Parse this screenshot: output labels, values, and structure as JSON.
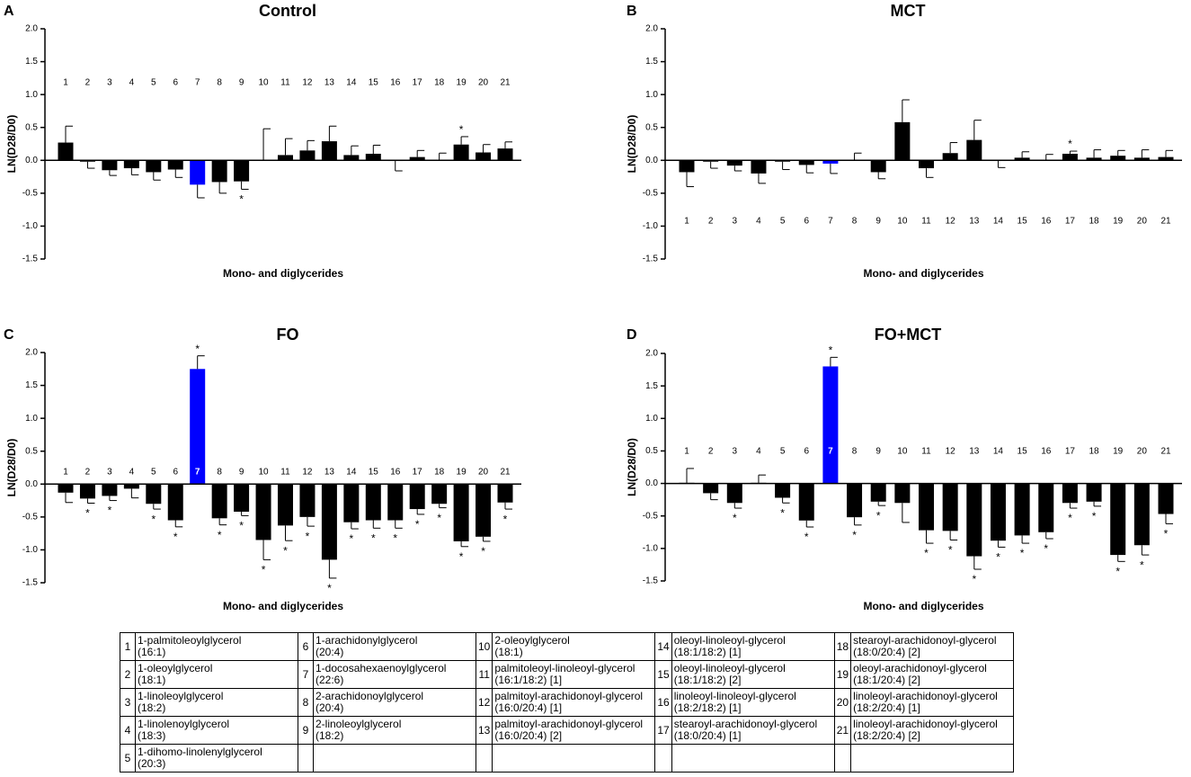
{
  "chart_data": [
    {
      "type": "bar",
      "panel_label": "A",
      "title": "Control",
      "xlabel": "Mono- and diglycerides",
      "ylabel": "LN(D28/D0)",
      "categories": [
        "1",
        "2",
        "3",
        "4",
        "5",
        "6",
        "7",
        "8",
        "9",
        "10",
        "11",
        "12",
        "13",
        "14",
        "15",
        "16",
        "17",
        "18",
        "19",
        "20",
        "21"
      ],
      "values": [
        0.27,
        -0.02,
        -0.15,
        -0.12,
        -0.18,
        -0.14,
        -0.37,
        -0.33,
        -0.32,
        0.01,
        0.08,
        0.15,
        0.29,
        0.08,
        0.1,
        -0.01,
        0.05,
        0.01,
        0.24,
        0.12,
        0.18
      ],
      "errors": [
        0.25,
        0.1,
        0.08,
        0.1,
        0.12,
        0.12,
        0.2,
        0.17,
        0.12,
        0.47,
        0.25,
        0.15,
        0.23,
        0.14,
        0.13,
        0.15,
        0.1,
        0.1,
        0.12,
        0.12,
        0.1
      ],
      "significance": [
        null,
        null,
        null,
        null,
        null,
        null,
        null,
        null,
        "*",
        null,
        null,
        null,
        null,
        null,
        null,
        null,
        null,
        null,
        "*",
        null,
        null
      ],
      "bar_colors": [
        "#000000",
        "#000000",
        "#000000",
        "#000000",
        "#000000",
        "#000000",
        "#0000ff",
        "#000000",
        "#000000",
        "#000000",
        "#000000",
        "#000000",
        "#000000",
        "#000000",
        "#000000",
        "#000000",
        "#000000",
        "#000000",
        "#000000",
        "#000000",
        "#000000"
      ],
      "ylim": [
        -1.5,
        2
      ],
      "yticks": [
        -1.5,
        {
          "value": -1,
          "label": "-1.0"
        },
        -0.5,
        {
          "value": 0,
          "label": "0.0"
        },
        0.5,
        {
          "value": 1,
          "label": "1.0"
        },
        1.5,
        {
          "value": 2,
          "label": "2.0"
        }
      ]
    },
    {
      "type": "bar",
      "panel_label": "B",
      "title": "MCT",
      "xlabel": "Mono- and diglycerides",
      "ylabel": "LN(D28/D0)",
      "categories": [
        "1",
        "2",
        "3",
        "4",
        "5",
        "6",
        "7",
        "8",
        "9",
        "10",
        "11",
        "12",
        "13",
        "14",
        "15",
        "16",
        "17",
        "18",
        "19",
        "20",
        "21"
      ],
      "values": [
        -0.18,
        -0.02,
        -0.08,
        -0.2,
        -0.02,
        -0.07,
        -0.05,
        0.01,
        -0.18,
        0.58,
        -0.12,
        0.11,
        0.31,
        -0.01,
        0.04,
        0.01,
        0.1,
        0.04,
        0.07,
        0.04,
        0.05
      ],
      "errors": [
        0.22,
        0.1,
        0.08,
        0.15,
        0.12,
        0.12,
        0.15,
        0.1,
        0.1,
        0.34,
        0.14,
        0.16,
        0.3,
        0.1,
        0.09,
        0.08,
        0.04,
        0.12,
        0.08,
        0.12,
        0.1
      ],
      "significance": [
        null,
        null,
        null,
        null,
        null,
        null,
        null,
        null,
        null,
        null,
        null,
        null,
        null,
        null,
        null,
        null,
        "*",
        null,
        null,
        null,
        null
      ],
      "bar_colors": [
        "#000000",
        "#000000",
        "#000000",
        "#000000",
        "#000000",
        "#000000",
        "#0000ff",
        "#000000",
        "#000000",
        "#000000",
        "#000000",
        "#000000",
        "#000000",
        "#000000",
        "#000000",
        "#000000",
        "#000000",
        "#000000",
        "#000000",
        "#000000",
        "#000000"
      ],
      "ylim": [
        -1.5,
        2
      ],
      "yticks": [
        -1.5,
        {
          "value": -1,
          "label": "-1.0"
        },
        -0.5,
        {
          "value": 0,
          "label": "0.0"
        },
        0.5,
        {
          "value": 1,
          "label": "1.0"
        },
        1.5,
        {
          "value": 2,
          "label": "2.0"
        }
      ]
    },
    {
      "type": "bar",
      "panel_label": "C",
      "title": "FO",
      "xlabel": "Mono- and diglycerides",
      "ylabel": "LN(D28/D0)",
      "categories": [
        "1",
        "2",
        "3",
        "4",
        "5",
        "6",
        "7",
        "8",
        "9",
        "10",
        "11",
        "12",
        "13",
        "14",
        "15",
        "16",
        "17",
        "18",
        "19",
        "20",
        "21"
      ],
      "values": [
        -0.13,
        -0.22,
        -0.18,
        -0.07,
        -0.3,
        -0.55,
        1.75,
        -0.52,
        -0.42,
        -0.85,
        -0.63,
        -0.5,
        -1.15,
        -0.58,
        -0.55,
        -0.55,
        -0.38,
        -0.3,
        -0.87,
        -0.8,
        -0.28
      ],
      "errors": [
        0.15,
        0.07,
        0.07,
        0.14,
        0.08,
        0.1,
        0.2,
        0.1,
        0.06,
        0.3,
        0.23,
        0.14,
        0.28,
        0.1,
        0.12,
        0.12,
        0.08,
        0.06,
        0.08,
        0.07,
        0.1
      ],
      "significance": [
        null,
        "*",
        "*",
        null,
        "*",
        "*",
        "*",
        "*",
        "*",
        "*",
        "*",
        "*",
        "*",
        "*",
        "*",
        "*",
        "*",
        "*",
        "*",
        "*",
        "*"
      ],
      "bar_colors": [
        "#000000",
        "#000000",
        "#000000",
        "#000000",
        "#000000",
        "#000000",
        "#0000ff",
        "#000000",
        "#000000",
        "#000000",
        "#000000",
        "#000000",
        "#000000",
        "#000000",
        "#000000",
        "#000000",
        "#000000",
        "#000000",
        "#000000",
        "#000000",
        "#000000"
      ],
      "ylim": [
        -1.5,
        2
      ],
      "yticks": [
        -1.5,
        {
          "value": -1,
          "label": "-1.0"
        },
        -0.5,
        {
          "value": 0,
          "label": "0.0"
        },
        0.5,
        {
          "value": 1,
          "label": "1.0"
        },
        1.5,
        {
          "value": 2,
          "label": "2.0"
        }
      ]
    },
    {
      "type": "bar",
      "panel_label": "D",
      "title": "FO+MCT",
      "xlabel": "Mono- and diglycerides",
      "ylabel": "LN(D28/D0)",
      "categories": [
        "1",
        "2",
        "3",
        "4",
        "5",
        "6",
        "7",
        "8",
        "9",
        "10",
        "11",
        "12",
        "13",
        "14",
        "15",
        "16",
        "17",
        "18",
        "19",
        "20",
        "21"
      ],
      "values": [
        0.01,
        -0.15,
        -0.3,
        0.01,
        -0.22,
        -0.57,
        1.8,
        -0.52,
        -0.28,
        -0.3,
        -0.72,
        -0.73,
        -1.12,
        -0.88,
        -0.8,
        -0.75,
        -0.3,
        -0.28,
        -1.1,
        -0.95,
        -0.47
      ],
      "errors": [
        0.22,
        0.1,
        0.08,
        0.12,
        0.08,
        0.1,
        0.14,
        0.12,
        0.06,
        0.3,
        0.2,
        0.14,
        0.2,
        0.1,
        0.12,
        0.1,
        0.08,
        0.07,
        0.1,
        0.15,
        0.15
      ],
      "significance": [
        null,
        null,
        "*",
        null,
        "*",
        "*",
        "*",
        "*",
        "*",
        null,
        "*",
        "*",
        "*",
        "*",
        "*",
        "*",
        "*",
        "*",
        "*",
        "*",
        "*"
      ],
      "bar_colors": [
        "#000000",
        "#000000",
        "#000000",
        "#000000",
        "#000000",
        "#000000",
        "#0000ff",
        "#000000",
        "#000000",
        "#000000",
        "#000000",
        "#000000",
        "#000000",
        "#000000",
        "#000000",
        "#000000",
        "#000000",
        "#000000",
        "#000000",
        "#000000",
        "#000000"
      ],
      "ylim": [
        -1.5,
        2
      ],
      "yticks": [
        -1.5,
        {
          "value": -1,
          "label": "-1.0"
        },
        -0.5,
        {
          "value": 0,
          "label": "0.0"
        },
        0.5,
        {
          "value": 1,
          "label": "1.0"
        },
        1.5,
        {
          "value": 2,
          "label": "2.0"
        }
      ]
    }
  ],
  "legend_table": {
    "entries": [
      {
        "number": "1",
        "name": "1-palmitoleoylglycerol",
        "formula": "(16:1)"
      },
      {
        "number": "2",
        "name": "1-oleoylglycerol",
        "formula": "(18:1)"
      },
      {
        "number": "3",
        "name": "1-linoleoylglycerol",
        "formula": "(18:2)"
      },
      {
        "number": "4",
        "name": "1-linolenoylglycerol",
        "formula": "(18:3)"
      },
      {
        "number": "5",
        "name": "1-dihomo-linolenylglycerol",
        "formula": "(20:3)"
      },
      {
        "number": "6",
        "name": "1-arachidonylglycerol",
        "formula": "(20:4)"
      },
      {
        "number": "7",
        "name": "1-docosahexaenoylglycerol",
        "formula": "(22:6)"
      },
      {
        "number": "8",
        "name": "2-arachidonoylglycerol",
        "formula": "(20:4)"
      },
      {
        "number": "9",
        "name": "2-linoleoylglycerol",
        "formula": "(18:2)"
      },
      {
        "number": "10",
        "name": "2-oleoylglycerol",
        "formula": "(18:1)"
      },
      {
        "number": "11",
        "name": "palmitoleoyl-linoleoyl-glycerol",
        "formula": "(16:1/18:2) [1]"
      },
      {
        "number": "12",
        "name": "palmitoyl-arachidonoyl-glycerol",
        "formula": "(16:0/20:4) [1]"
      },
      {
        "number": "13",
        "name": "palmitoyl-arachidonoyl-glycerol",
        "formula": "(16:0/20:4) [2]"
      },
      {
        "number": "14",
        "name": "oleoyl-linoleoyl-glycerol",
        "formula": "(18:1/18:2) [1]"
      },
      {
        "number": "15",
        "name": "oleoyl-linoleoyl-glycerol",
        "formula": "(18:1/18:2) [2]"
      },
      {
        "number": "16",
        "name": "linoleoyl-linoleoyl-glycerol",
        "formula": "(18:2/18:2) [1]"
      },
      {
        "number": "17",
        "name": "stearoyl-arachidonoyl-glycerol",
        "formula": "(18:0/20:4) [1]"
      },
      {
        "number": "18",
        "name": "stearoyl-arachidonoyl-glycerol",
        "formula": "(18:0/20:4) [2]"
      },
      {
        "number": "19",
        "name": "oleoyl-arachidonoyl-glycerol",
        "formula": "(18:1/20:4) [2]"
      },
      {
        "number": "20",
        "name": "linoleoyl-arachidonoyl-glycerol",
        "formula": "(18:2/20:4) [1]"
      },
      {
        "number": "21",
        "name": "linoleoyl-arachidonoyl-glycerol",
        "formula": "(18:2/20:4) [2]"
      }
    ]
  }
}
